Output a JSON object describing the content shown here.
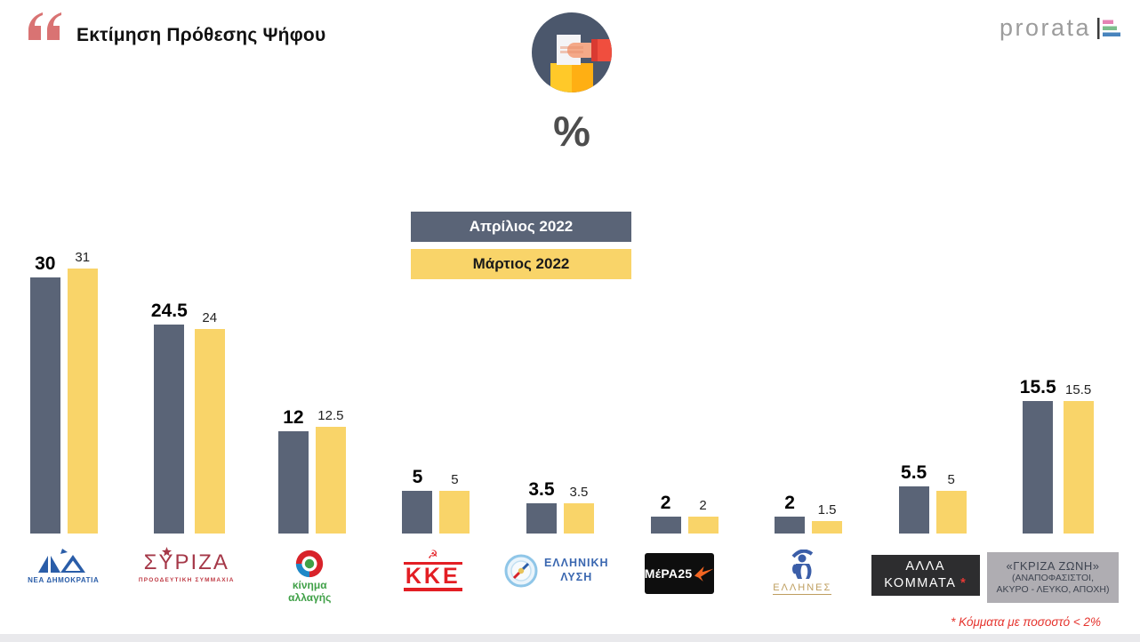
{
  "header": {
    "title": "Εκτίμηση Πρόθεσης Ψήφου",
    "quote_icon_color": "#D97373",
    "brand": {
      "name": "prorata",
      "chart_icon_colors": [
        "#E583B4",
        "#7CBE8C",
        "#4884BD"
      ]
    }
  },
  "hero_icon": {
    "percent_label": "%"
  },
  "legend": {
    "items": [
      {
        "label": "Απρίλιος 2022",
        "bg": "#5A6477",
        "fg": "#FFFFFF"
      },
      {
        "label": "Μάρτιος 2022",
        "bg": "#F9D469",
        "fg": "#1A1A1A"
      }
    ]
  },
  "chart_data": {
    "type": "bar",
    "title": "Εκτίμηση Πρόθεσης Ψήφου",
    "unit": "%",
    "categories": [
      "ΝΕΑ ΔΗΜΟΚΡΑΤΙΑ",
      "ΣΥΡΙΖΑ - ΠΡΟΟΔΕΥΤΙΚΗ ΣΥΜΜΑΧΙΑ",
      "ΚΙΝΗΜΑ ΑΛΛΑΓΗΣ",
      "ΚΚΕ",
      "ΕΛΛΗΝΙΚΗ ΛΥΣΗ",
      "ΜέΡΑ25",
      "ΕΛΛΗΝΕΣ",
      "ΑΛΛΑ ΚΟΜΜΑΤΑ *",
      "«ΓΚΡΙΖΑ ΖΩΝΗ» (ΑΝΑΠΟΦΑΣΙΣΤΟΙ, ΑΚΥΡΟ - ΛΕΥΚΟ, ΑΠΟΧΗ)"
    ],
    "series": [
      {
        "name": "Απρίλιος 2022",
        "color": "#5A6477",
        "values": [
          30,
          24.5,
          12,
          5,
          3.5,
          2,
          2,
          5.5,
          15.5
        ]
      },
      {
        "name": "Μάρτιος 2022",
        "color": "#F9D469",
        "values": [
          31,
          24,
          12.5,
          5,
          3.5,
          2,
          1.5,
          5,
          15.5
        ]
      }
    ],
    "ylim": [
      0,
      31
    ],
    "grid": false,
    "value_labels": true,
    "legend_position": "top-center"
  },
  "parties": [
    {
      "id": "nd",
      "name": "ΝΕΑ ΔΗΜΟΚΡΑΤΙΑ",
      "color": "#2A5DA8"
    },
    {
      "id": "syriza",
      "name": "ΣΥΡΙΖΑ",
      "subtitle": "ΠΡΟΟΔΕΥΤΙΚΗ ΣΥΜΜΑΧΙΑ",
      "color": "#A53848"
    },
    {
      "id": "kinal",
      "line1": "κίνημα",
      "line2": "αλλαγής",
      "color": "#3FA047"
    },
    {
      "id": "kke",
      "name": "ΚΚΕ",
      "emblem": "☭",
      "color": "#E31E24"
    },
    {
      "id": "elliniki-lysi",
      "line1": "ΕΛΛΗΝΙΚΗ",
      "line2": "ΛΥΣΗ",
      "color": "#3A67B0"
    },
    {
      "id": "mera25",
      "name": "ΜέΡΑ25",
      "bg": "#0E0E0E",
      "accent": "#F26522"
    },
    {
      "id": "ellines",
      "name": "ΕΛΛΗΝΕΣ",
      "color": "#BE9E5F"
    },
    {
      "id": "alla-kommata",
      "line1": "ΑΛΛΑ",
      "line2": "ΚΟΜΜΑΤΑ",
      "asterisk": "*",
      "bg": "#2D2D2F"
    },
    {
      "id": "gkriza-zoni",
      "line1": "«ΓΚΡΙΖΑ ΖΩΝΗ»",
      "line2": "(ΑΝΑΠΟΦΑΣΙΣΤΟΙ,",
      "line3": "ΑΚΥΡΟ - ΛΕΥΚΟ, ΑΠΟΧΗ)",
      "bg": "#AFADB2",
      "fg": "#3E4450"
    }
  ],
  "footnote": {
    "text": "* Κόμματα με ποσοστό < 2%",
    "color": "#E5342E"
  },
  "icons": {
    "quote-icon": "double opening quote marks",
    "ballot-box-icon": "hand dropping ballot into yellow box inside dark circle",
    "percent-symbol": "%",
    "brand-chart-icon": "vertical line with pink/green/blue horizontal bars",
    "star-icon": "star above Υ of ΣΥΡΙΖΑ",
    "flower-icon": "ΚΙΝΑΛ pinwheel flower, red/blue petals, green center",
    "hammer-sickle-icon": "☭",
    "compass-icon": "Ελληνική Λύση compass",
    "swallow-icon": "ΜέΡΑ25 orange swallow",
    "warrior-icon": "ΕΛΛΗΝΕΣ blue hoplite figure"
  }
}
